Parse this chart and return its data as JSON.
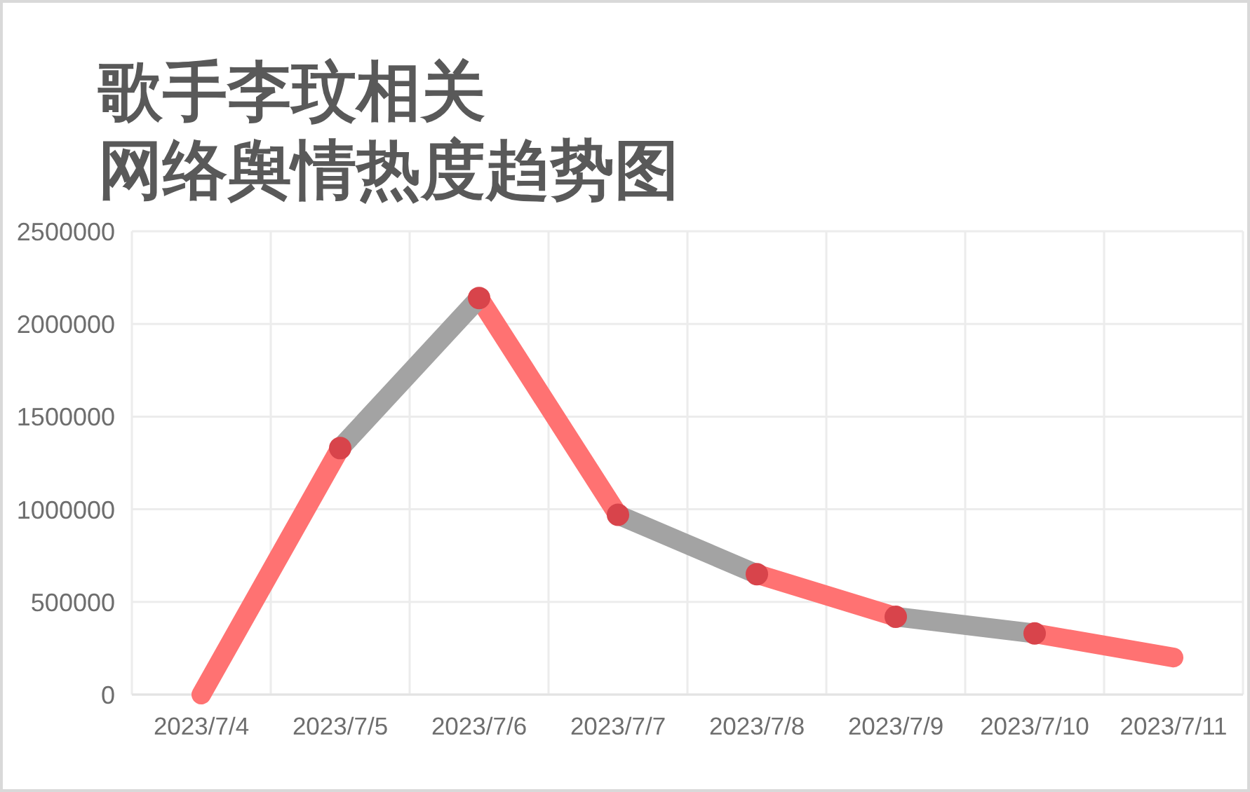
{
  "chart_data": {
    "type": "line",
    "title": "歌手李玟相关",
    "subtitle": "网络舆情热度趋势图",
    "categories": [
      "2023/7/4",
      "2023/7/5",
      "2023/7/6",
      "2023/7/7",
      "2023/7/8",
      "2023/7/9",
      "2023/7/10",
      "2023/7/11"
    ],
    "series": [
      {
        "color": "#ff7272",
        "x": [
          "2023/7/4",
          "2023/7/5",
          null,
          "2023/7/6",
          "2023/7/7",
          null,
          "2023/7/8",
          "2023/7/9",
          null,
          "2023/7/10",
          "2023/7/11"
        ],
        "values": [
          0,
          1330000,
          null,
          2140000,
          970000,
          null,
          650000,
          420000,
          null,
          330000,
          200000
        ]
      },
      {
        "color": "#a3a3a3",
        "x": [
          "2023/7/5",
          "2023/7/6",
          null,
          "2023/7/7",
          "2023/7/8",
          null,
          "2023/7/9",
          "2023/7/10"
        ],
        "values": [
          1330000,
          2140000,
          null,
          970000,
          650000,
          null,
          420000,
          330000
        ]
      },
      {
        "type": "scatter",
        "color": "#d8444b",
        "values": [
          null,
          1330000,
          2140000,
          970000,
          650000,
          420000,
          330000,
          null
        ]
      }
    ],
    "ylim": [
      0,
      2500000
    ],
    "yticks": [
      0,
      500000,
      1000000,
      1500000,
      2000000,
      2500000
    ],
    "grid": true
  }
}
